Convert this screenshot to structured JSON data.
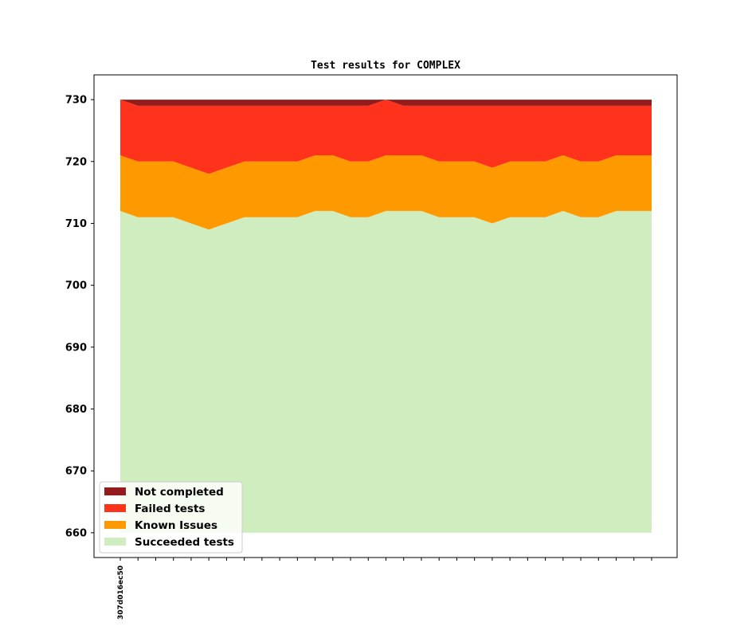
{
  "chart_data": {
    "type": "area",
    "title": "Test results for COMPLEX",
    "xlabel": "",
    "ylabel": "",
    "ylim": [
      656,
      734
    ],
    "yticks": [
      660,
      670,
      680,
      690,
      700,
      710,
      720,
      730
    ],
    "x_count": 31,
    "x_tick_labels": [
      {
        "index": 0,
        "label": "307d016ec50"
      }
    ],
    "stacked": true,
    "baseline": 660,
    "grid": false,
    "legend_position": "lower-left",
    "series": [
      {
        "name": "Succeeded tests",
        "color": "#cfedbf",
        "cumulative_top": [
          712,
          711,
          711,
          711,
          710,
          709,
          710,
          711,
          711,
          711,
          711,
          712,
          712,
          711,
          711,
          712,
          712,
          712,
          711,
          711,
          711,
          710,
          711,
          711,
          711,
          712,
          711,
          711,
          712,
          712,
          712
        ]
      },
      {
        "name": "Known Issues",
        "color": "#ff9900",
        "cumulative_top": [
          721,
          720,
          720,
          720,
          719,
          718,
          719,
          720,
          720,
          720,
          720,
          721,
          721,
          720,
          720,
          721,
          721,
          721,
          720,
          720,
          720,
          719,
          720,
          720,
          720,
          721,
          720,
          720,
          721,
          721,
          721
        ]
      },
      {
        "name": "Failed tests",
        "color": "#ff321c",
        "cumulative_top": [
          730,
          729,
          729,
          729,
          729,
          729,
          729,
          729,
          729,
          729,
          729,
          729,
          729,
          729,
          729,
          730,
          729,
          729,
          729,
          729,
          729,
          729,
          729,
          729,
          729,
          729,
          729,
          729,
          729,
          729,
          729
        ]
      },
      {
        "name": "Not completed",
        "color": "#941c1c",
        "cumulative_top": [
          730,
          730,
          730,
          730,
          730,
          730,
          730,
          730,
          730,
          730,
          730,
          730,
          730,
          730,
          730,
          730,
          730,
          730,
          730,
          730,
          730,
          730,
          730,
          730,
          730,
          730,
          730,
          730,
          730,
          730,
          730
        ]
      }
    ],
    "legend": [
      "Not completed",
      "Failed tests",
      "Known Issues",
      "Succeeded tests"
    ]
  }
}
